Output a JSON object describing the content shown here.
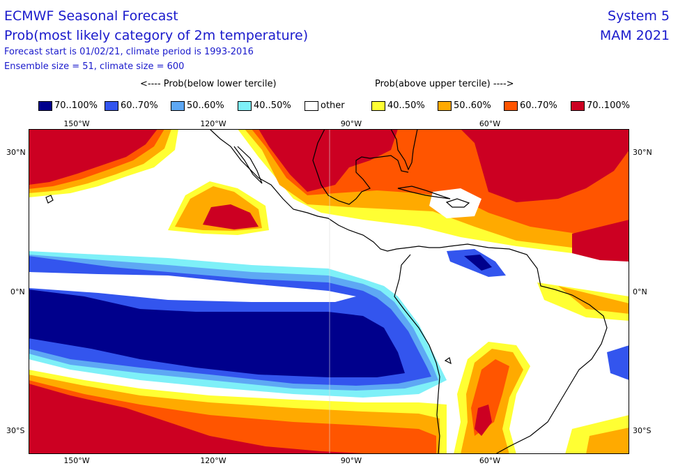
{
  "title": "ECMWF Seasonal Forecast",
  "subtitle": "Prob(most likely category of 2m temperature)",
  "info_line1": "Forecast start is 01/02/21, climate period is 1993-2016",
  "info_line2": "Ensemble size = 51, climate size = 600",
  "system": "System 5",
  "season": "MAM 2021",
  "legend_header_left": "<---- Prob(below lower tercile)",
  "legend_header_right": "Prob(above upper tercile) ---->",
  "legend": [
    {
      "label": "70..100%",
      "color": "#00008c"
    },
    {
      "label": "60..70%",
      "color": "#3355ee"
    },
    {
      "label": "50..60%",
      "color": "#5ea8f4"
    },
    {
      "label": "40..50%",
      "color": "#7ef0f8"
    },
    {
      "label": "other",
      "color": "#ffffff"
    },
    {
      "label": "40..50%",
      "color": "#ffff33"
    },
    {
      "label": "50..60%",
      "color": "#ffaa00"
    },
    {
      "label": "60..70%",
      "color": "#ff5500"
    },
    {
      "label": "70..100%",
      "color": "#cc0022"
    }
  ],
  "lon_labels": [
    "150°W",
    "120°W",
    "90°W",
    "60°W"
  ],
  "lat_labels": [
    "30°N",
    "0°N",
    "30°S"
  ]
}
